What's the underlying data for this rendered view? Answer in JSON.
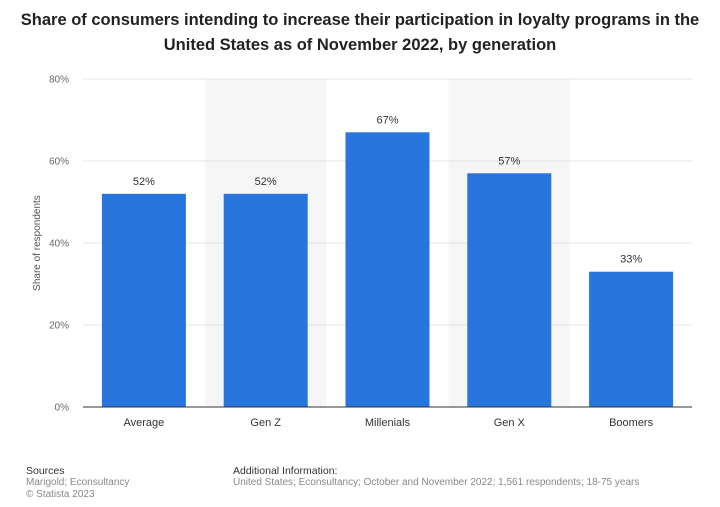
{
  "title": "Share of consumers intending to increase their participation in loyalty programs in the United States as of November 2022, by generation",
  "colors": {
    "bar": "#2775dd",
    "band": "#f6f6f6",
    "grid": "#e4e4e4",
    "axis": "#333333"
  },
  "chart_data": {
    "type": "bar",
    "categories": [
      "Average",
      "Gen Z",
      "Millenials",
      "Gen X",
      "Boomers"
    ],
    "values": [
      52,
      52,
      67,
      57,
      33
    ],
    "value_labels": [
      "52%",
      "52%",
      "67%",
      "57%",
      "33%"
    ],
    "ylabel": "Share of respondents",
    "ylim": [
      0,
      80
    ],
    "yticks": [
      0,
      20,
      40,
      60,
      80
    ],
    "ytick_labels": [
      "0%",
      "20%",
      "40%",
      "60%",
      "80%"
    ],
    "grid": true
  },
  "footer": {
    "sources_heading": "Sources",
    "sources_lines": [
      "Marigold; Econsultancy",
      "© Statista 2023"
    ],
    "info_heading": "Additional Information:",
    "info_text": "United States; Econsultancy; October and November 2022; 1,561 respondents; 18-75 years"
  }
}
